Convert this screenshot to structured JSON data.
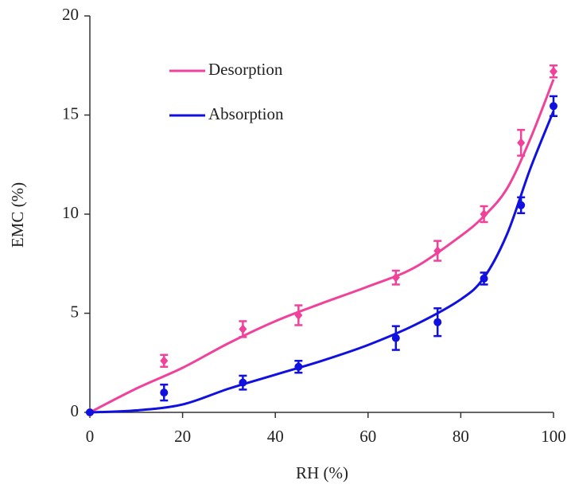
{
  "chart_data": {
    "type": "scatter",
    "xlabel": "RH (%)",
    "ylabel": "EMC (%)",
    "xlim": [
      0,
      100
    ],
    "xticks": [
      0,
      20,
      40,
      60,
      80,
      100
    ],
    "ylim": [
      0,
      20
    ],
    "yticks": [
      0,
      5,
      10,
      15,
      20
    ],
    "legend": "upper left",
    "series": [
      {
        "name": "Desorption",
        "color": "#f0419b",
        "marker": "diamond",
        "x": [
          0,
          16,
          33,
          45,
          66,
          75,
          85,
          93,
          100
        ],
        "values": [
          0,
          2.6,
          4.2,
          4.9,
          6.8,
          8.15,
          10.0,
          13.6,
          17.2
        ],
        "errors": [
          0,
          0.3,
          0.4,
          0.5,
          0.35,
          0.5,
          0.4,
          0.65,
          0.3
        ],
        "fit_x": [
          0,
          10,
          20,
          30,
          40,
          50,
          60,
          70,
          80,
          85,
          90,
          95,
          100
        ],
        "fit_values": [
          0,
          1.2,
          2.25,
          3.5,
          4.6,
          5.5,
          6.35,
          7.3,
          8.9,
          9.9,
          11.3,
          13.8,
          16.8
        ]
      },
      {
        "name": "Absorption",
        "color": "#1010e0",
        "marker": "circle",
        "x": [
          0,
          16,
          33,
          45,
          66,
          75,
          85,
          93,
          100
        ],
        "values": [
          0,
          1.0,
          1.5,
          2.3,
          3.75,
          4.55,
          6.75,
          10.45,
          15.45
        ],
        "errors": [
          0,
          0.4,
          0.35,
          0.3,
          0.6,
          0.7,
          0.3,
          0.4,
          0.5
        ],
        "fit_x": [
          0,
          10,
          20,
          30,
          40,
          50,
          60,
          70,
          80,
          85,
          90,
          95,
          100
        ],
        "fit_values": [
          0,
          0.1,
          0.4,
          1.2,
          1.9,
          2.6,
          3.4,
          4.4,
          5.7,
          6.8,
          9.0,
          12.3,
          15.2
        ]
      }
    ]
  }
}
